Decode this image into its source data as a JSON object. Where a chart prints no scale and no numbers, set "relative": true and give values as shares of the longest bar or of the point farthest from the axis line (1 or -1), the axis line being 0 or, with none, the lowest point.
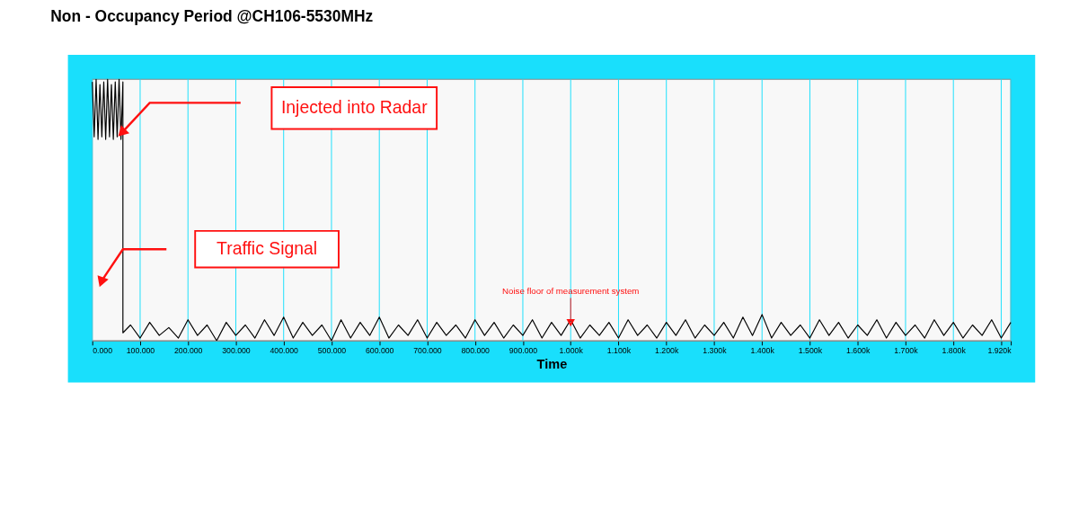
{
  "chart_data": {
    "type": "line",
    "title": "Non - Occupancy Period @CH106-5530MHz",
    "xlabel": "Time",
    "relative": true,
    "grid": "x",
    "marker": "none",
    "line_style": "solid",
    "xlim": [
      0,
      1920
    ],
    "xticks": [
      {
        "value": 0,
        "label": "0.000"
      },
      {
        "value": 100,
        "label": "100.000"
      },
      {
        "value": 200,
        "label": "200.000"
      },
      {
        "value": 300,
        "label": "300.000"
      },
      {
        "value": 400,
        "label": "400.000"
      },
      {
        "value": 500,
        "label": "500.000"
      },
      {
        "value": 600,
        "label": "600.000"
      },
      {
        "value": 700,
        "label": "700.000"
      },
      {
        "value": 800,
        "label": "800.000"
      },
      {
        "value": 900,
        "label": "900.000"
      },
      {
        "value": 1000,
        "label": "1.000k"
      },
      {
        "value": 1100,
        "label": "1.100k"
      },
      {
        "value": 1200,
        "label": "1.200k"
      },
      {
        "value": 1300,
        "label": "1.300k"
      },
      {
        "value": 1400,
        "label": "1.400k"
      },
      {
        "value": 1500,
        "label": "1.500k"
      },
      {
        "value": 1600,
        "label": "1.600k"
      },
      {
        "value": 1700,
        "label": "1.700k"
      },
      {
        "value": 1800,
        "label": "1.800k"
      },
      {
        "value": 1900,
        "label": null
      },
      {
        "value": 1920,
        "label": "1.920k"
      }
    ],
    "annotations": [
      "Injected into Radar",
      "Traffic Signal",
      {
        "text": "Noise floor of measurement system",
        "x": 1000,
        "y": 0.07
      }
    ],
    "series": [
      {
        "color": "#000000",
        "x": [
          0,
          4,
          8,
          12,
          16,
          20,
          24,
          28,
          32,
          36,
          40,
          44,
          48,
          52,
          56,
          60,
          64,
          64,
          80,
          100,
          120,
          140,
          160,
          180,
          200,
          220,
          240,
          260,
          280,
          300,
          320,
          340,
          360,
          380,
          400,
          420,
          440,
          460,
          480,
          500,
          520,
          540,
          560,
          580,
          600,
          620,
          640,
          660,
          680,
          700,
          720,
          740,
          760,
          780,
          800,
          820,
          840,
          860,
          880,
          900,
          920,
          940,
          960,
          980,
          1000,
          1020,
          1040,
          1060,
          1080,
          1100,
          1120,
          1140,
          1160,
          1180,
          1200,
          1220,
          1240,
          1260,
          1280,
          1300,
          1320,
          1340,
          1360,
          1380,
          1400,
          1420,
          1440,
          1460,
          1480,
          1500,
          1520,
          1540,
          1560,
          1580,
          1600,
          1620,
          1640,
          1660,
          1680,
          1700,
          1720,
          1740,
          1760,
          1780,
          1800,
          1820,
          1840,
          1860,
          1880,
          1900,
          1920
        ],
        "values": [
          0.99,
          0.78,
          1,
          0.77,
          0.98,
          0.78,
          0.99,
          0.77,
          1,
          0.78,
          0.98,
          0.77,
          0.99,
          0.78,
          1,
          0.77,
          0.99,
          0.03,
          0.06,
          0.01,
          0.07,
          0.02,
          0.05,
          0.01,
          0.08,
          0.02,
          0.06,
          0.0,
          0.07,
          0.02,
          0.06,
          0.01,
          0.08,
          0.02,
          0.09,
          0.01,
          0.07,
          0.02,
          0.06,
          0.0,
          0.08,
          0.01,
          0.07,
          0.02,
          0.09,
          0.01,
          0.06,
          0.02,
          0.08,
          0.01,
          0.07,
          0.02,
          0.06,
          0.01,
          0.08,
          0.02,
          0.07,
          0.01,
          0.06,
          0.02,
          0.08,
          0.01,
          0.07,
          0.02,
          0.08,
          0.01,
          0.06,
          0.02,
          0.07,
          0.01,
          0.08,
          0.02,
          0.06,
          0.01,
          0.07,
          0.02,
          0.08,
          0.01,
          0.06,
          0.02,
          0.07,
          0.01,
          0.09,
          0.02,
          0.1,
          0.01,
          0.07,
          0.02,
          0.06,
          0.01,
          0.08,
          0.02,
          0.07,
          0.01,
          0.06,
          0.02,
          0.08,
          0.01,
          0.07,
          0.02,
          0.06,
          0.01,
          0.08,
          0.02,
          0.07,
          0.01,
          0.06,
          0.02,
          0.08,
          0.01,
          0.07
        ]
      }
    ]
  }
}
